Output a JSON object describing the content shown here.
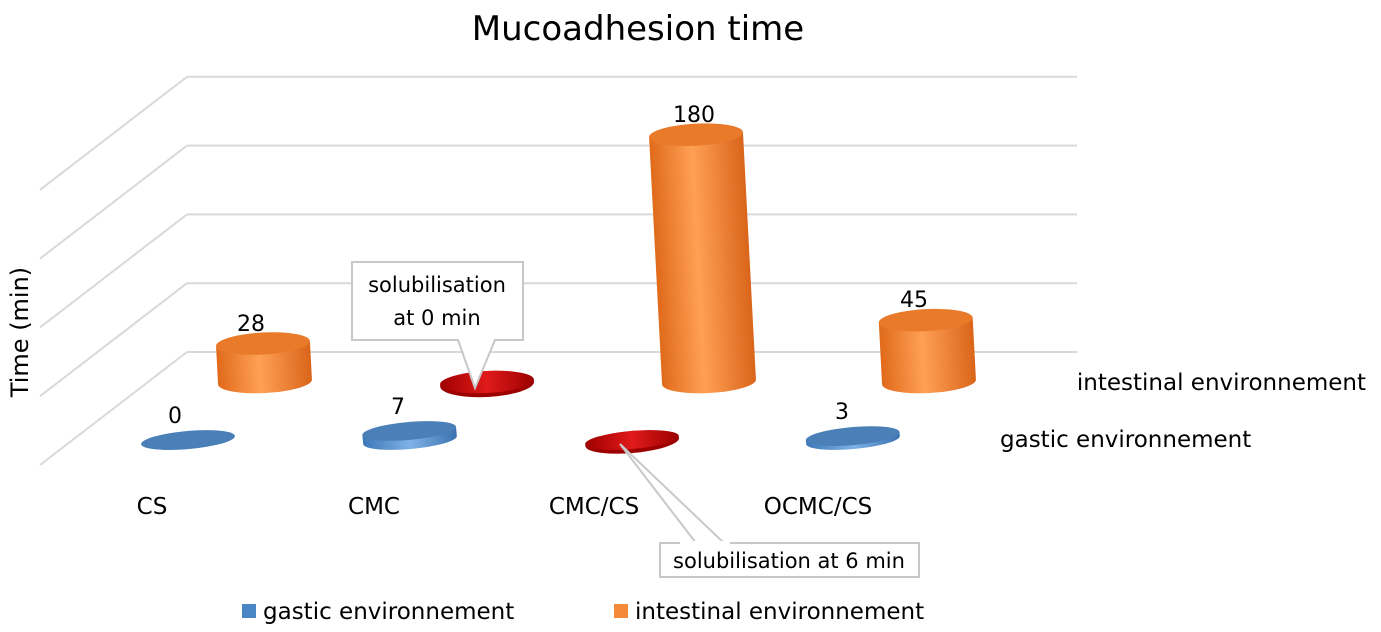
{
  "chart_data": {
    "type": "bar",
    "title": "Mucoadhesion time",
    "ylabel": "Time (min)",
    "xlabel": "",
    "categories": [
      "CS",
      "CMC",
      "CMC/CS",
      "OCMC/CS"
    ],
    "ylim": [
      0,
      200
    ],
    "grid": true,
    "series": [
      {
        "name": "gastic environnement",
        "values": [
          0,
          7,
          0,
          3
        ],
        "data_labels": [
          "0",
          "7",
          "",
          "3"
        ],
        "color": "#4a86c4"
      },
      {
        "name": "intestinal environnement",
        "values": [
          28,
          0,
          180,
          45
        ],
        "data_labels": [
          "28",
          "",
          "180",
          "45"
        ],
        "color": "#f58b3a"
      }
    ],
    "highlight_color": "#c00000",
    "annotations": [
      {
        "text_lines": [
          "solubilisation",
          "at 0 min"
        ],
        "category": "CMC",
        "series": "intestinal environnement"
      },
      {
        "text_lines": [
          "solubilisation at 6 min"
        ],
        "category": "CMC/CS",
        "series": "gastic environnement"
      }
    ],
    "legend": "bottom",
    "depth_labels": [
      "intestinal environnement",
      "gastic environnement"
    ]
  }
}
